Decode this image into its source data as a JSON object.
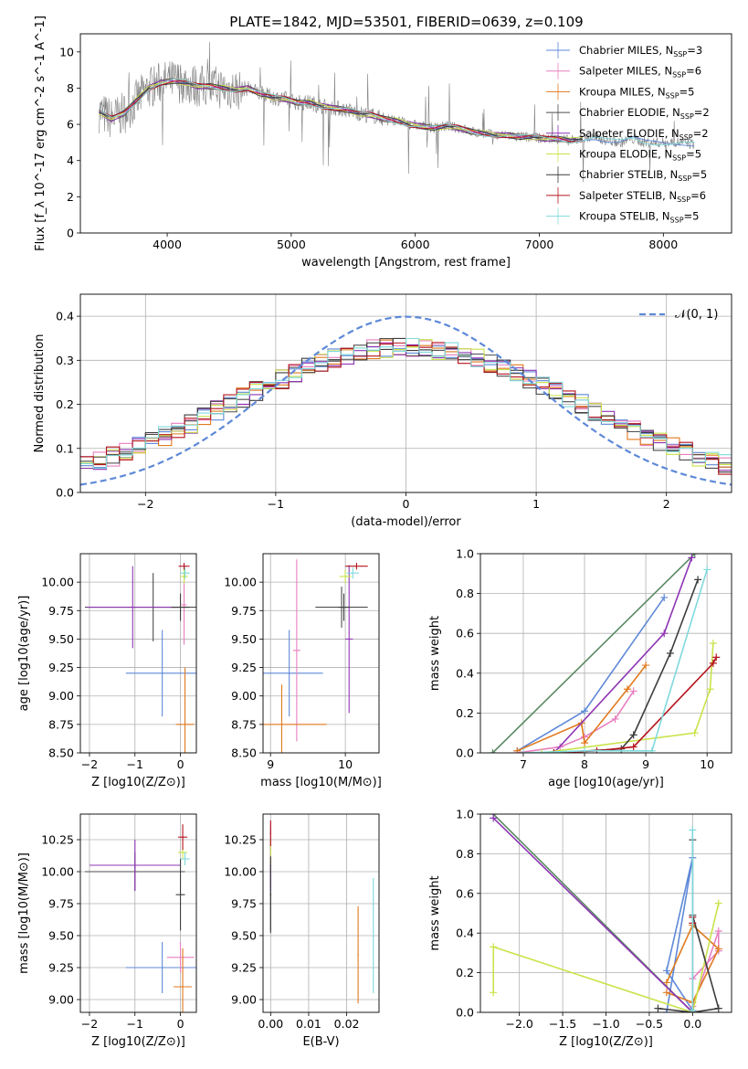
{
  "page_title": "PLATE=1842, MJD=53501, FIBERID=0639, z=0.109",
  "colors": {
    "series": [
      "#5e89d8",
      "#e77fbf",
      "#e07a1f",
      "#4d4d4d",
      "#8e35b3",
      "#c9e34a",
      "#3d3d3d",
      "#b5141c",
      "#7fd9dc"
    ],
    "spectrum": "#808080",
    "normal": "#5e89d8",
    "green": "#5b8a64"
  },
  "legend": [
    {
      "name": "Chabrier MILES",
      "n": "3"
    },
    {
      "name": "Salpeter MILES",
      "n": "6"
    },
    {
      "name": "Kroupa MILES",
      "n": "5"
    },
    {
      "name": "Chabrier ELODIE",
      "n": "2"
    },
    {
      "name": "Salpeter ELODIE",
      "n": "2"
    },
    {
      "name": "Kroupa ELODIE",
      "n": "5"
    },
    {
      "name": "Chabrier STELIB",
      "n": "5"
    },
    {
      "name": "Salpeter STELIB",
      "n": "6"
    },
    {
      "name": "Kroupa STELIB",
      "n": "5"
    }
  ],
  "chart_data": [
    {
      "id": "spectrum",
      "type": "line",
      "xlabel": "wavelength [Angstrom, rest frame]",
      "ylabel": "Flux [f_λ 10^-17 erg cm^-2 s^-1 A^-1]",
      "xlim": [
        3300,
        8550
      ],
      "ylim": [
        0,
        11
      ],
      "xticks": [
        "4000",
        "5000",
        "6000",
        "7000",
        "8000"
      ],
      "yticks": [
        "0",
        "2",
        "4",
        "6",
        "8",
        "10"
      ],
      "x": [
        3450,
        3550,
        3650,
        3750,
        3850,
        3950,
        4050,
        4150,
        4250,
        4350,
        4450,
        4550,
        4650,
        4750,
        4850,
        4950,
        5050,
        5150,
        5250,
        5350,
        5450,
        5550,
        5650,
        5750,
        5850,
        5950,
        6050,
        6150,
        6250,
        6350,
        6450,
        6550,
        6650,
        6750,
        6850,
        6950,
        7050,
        7150,
        7250,
        7350,
        7450,
        7550,
        7650,
        7750,
        7850,
        7950,
        8050,
        8150,
        8250
      ],
      "y": [
        6.7,
        6.3,
        6.6,
        7.3,
        8.0,
        8.3,
        8.4,
        8.3,
        8.1,
        8.1,
        8.0,
        7.9,
        8.0,
        7.7,
        7.5,
        7.4,
        7.2,
        7.2,
        7.0,
        6.9,
        6.8,
        6.6,
        6.5,
        6.3,
        6.2,
        6.0,
        5.9,
        5.8,
        5.9,
        5.8,
        5.6,
        5.5,
        5.4,
        5.4,
        5.3,
        5.3,
        5.2,
        5.2,
        5.1,
        5.2,
        5.3,
        5.1,
        5.0,
        5.2,
        5.0,
        5.0,
        5.0,
        5.0,
        4.9
      ],
      "grid": false
    },
    {
      "id": "residual-hist",
      "type": "bar",
      "xlabel": "(data-model)/error",
      "ylabel": "Normed distribution",
      "xlim": [
        -2.5,
        2.5
      ],
      "ylim": [
        0,
        0.45
      ],
      "xticks": [
        "−2",
        "−1",
        "0",
        "1",
        "2"
      ],
      "yticks": [
        "0.0",
        "0.1",
        "0.2",
        "0.3",
        "0.4"
      ],
      "legend_label": "𝒩(0, 1)",
      "legend_position": "top-right",
      "grid": true
    },
    {
      "id": "age-z",
      "type": "scatter",
      "xlabel": "Z [log10(Z/Z⊙)]",
      "ylabel": "age  [log10(age/yr)]",
      "xlim": [
        -2.2,
        0.35
      ],
      "ylim": [
        8.5,
        10.25
      ],
      "xticks": [
        "−2",
        "−1",
        "0"
      ],
      "yticks": [
        "8.50",
        "8.75",
        "9.00",
        "9.25",
        "9.50",
        "9.75",
        "10.00"
      ],
      "points": [
        {
          "x": -0.4,
          "y": 9.2,
          "xe": 0.8,
          "ye": 0.38,
          "c": 0
        },
        {
          "x": 0.08,
          "y": 9.8,
          "xe": 0.06,
          "ye": 0.35,
          "c": 1
        },
        {
          "x": 0.1,
          "y": 8.75,
          "xe": 0.2,
          "ye": 0.5,
          "c": 2
        },
        {
          "x": -0.6,
          "y": 9.78,
          "xe": 1.5,
          "ye": 0.3,
          "c": 3
        },
        {
          "x": -1.05,
          "y": 9.78,
          "xe": 1.0,
          "ye": 0.36,
          "c": 4
        },
        {
          "x": 0.08,
          "y": 10.05,
          "xe": 0.08,
          "ye": 0.06,
          "c": 5
        },
        {
          "x": 0.0,
          "y": 9.78,
          "xe": 0.2,
          "ye": 0.12,
          "c": 6
        },
        {
          "x": 0.08,
          "y": 10.14,
          "xe": 0.12,
          "ye": 0.03,
          "c": 7
        },
        {
          "x": 0.1,
          "y": 10.08,
          "xe": 0.1,
          "ye": 0.05,
          "c": 8
        }
      ],
      "grid": true
    },
    {
      "id": "age-mass",
      "type": "scatter",
      "xlabel": "mass [log10(M/M⊙)]",
      "ylabel": "",
      "xlim": [
        8.9,
        10.45
      ],
      "ylim": [
        8.5,
        10.25
      ],
      "xticks": [
        "9",
        "10"
      ],
      "yticks": [
        "8.50",
        "8.75",
        "9.00",
        "9.25",
        "9.50",
        "9.75",
        "10.00"
      ],
      "points": [
        {
          "x": 9.25,
          "y": 9.2,
          "xe": 0.45,
          "ye": 0.38,
          "c": 0
        },
        {
          "x": 9.35,
          "y": 9.4,
          "xe": 0.05,
          "ye": 0.8,
          "c": 1
        },
        {
          "x": 9.15,
          "y": 8.75,
          "xe": 0.6,
          "ye": 0.35,
          "c": 2
        },
        {
          "x": 9.95,
          "y": 9.78,
          "xe": 0.35,
          "ye": 0.18,
          "c": 3
        },
        {
          "x": 10.05,
          "y": 9.5,
          "xe": 0.05,
          "ye": 0.65,
          "c": 4
        },
        {
          "x": 10.0,
          "y": 10.05,
          "xe": 0.08,
          "ye": 0.06,
          "c": 5
        },
        {
          "x": 9.98,
          "y": 9.78,
          "xe": 0.08,
          "ye": 0.12,
          "c": 6
        },
        {
          "x": 10.15,
          "y": 10.14,
          "xe": 0.15,
          "ye": 0.03,
          "c": 7
        },
        {
          "x": 10.1,
          "y": 10.08,
          "xe": 0.08,
          "ye": 0.05,
          "c": 8
        }
      ],
      "grid": true
    },
    {
      "id": "mw-age",
      "type": "line",
      "xlabel": "age  [log10(age/yr)]",
      "ylabel": "mass weight",
      "xlim": [
        6.3,
        10.4
      ],
      "ylim": [
        0,
        1
      ],
      "xticks": [
        "7",
        "8",
        "9",
        "10"
      ],
      "yticks": [
        "0.0",
        "0.2",
        "0.4",
        "0.6",
        "0.8",
        "1.0"
      ],
      "series": [
        {
          "c": 0,
          "x": [
            6.9,
            8.0,
            9.3
          ],
          "y": [
            0.01,
            0.21,
            0.78
          ]
        },
        {
          "c": 1,
          "x": [
            6.9,
            7.6,
            8.0,
            8.5,
            8.8
          ],
          "y": [
            0.0,
            0.03,
            0.08,
            0.17,
            0.31
          ]
        },
        {
          "c": 2,
          "x": [
            6.9,
            7.95,
            8.0,
            8.7,
            9.0
          ],
          "y": [
            0.01,
            0.15,
            0.05,
            0.32,
            0.44
          ]
        },
        {
          "c": 3,
          "x": [
            6.5,
            9.8
          ],
          "y": [
            0.0,
            1.0
          ]
        },
        {
          "c": 4,
          "x": [
            7.5,
            9.3,
            9.75
          ],
          "y": [
            0.0,
            0.6,
            0.98
          ]
        },
        {
          "c": 5,
          "x": [
            7.3,
            9.8,
            10.05,
            10.1
          ],
          "y": [
            0.0,
            0.1,
            0.32,
            0.55
          ]
        },
        {
          "c": 6,
          "x": [
            7.5,
            8.6,
            8.8,
            9.4,
            9.85
          ],
          "y": [
            0.0,
            0.02,
            0.09,
            0.5,
            0.87
          ]
        },
        {
          "c": 7,
          "x": [
            7.5,
            8.2,
            8.8,
            10.1,
            10.15
          ],
          "y": [
            0.0,
            0.01,
            0.03,
            0.45,
            0.48
          ]
        },
        {
          "c": 8,
          "x": [
            7.0,
            8.0,
            9.1,
            10.0
          ],
          "y": [
            0.0,
            0.01,
            0.01,
            0.92
          ]
        }
      ],
      "grid": true
    },
    {
      "id": "mass-z",
      "type": "scatter",
      "xlabel": "Z [log10(Z/Z⊙)]",
      "ylabel": "mass [log10(M/M⊙)]",
      "xlim": [
        -2.2,
        0.35
      ],
      "ylim": [
        8.9,
        10.45
      ],
      "xticks": [
        "−2",
        "−1",
        "0"
      ],
      "yticks": [
        "9.00",
        "9.25",
        "9.50",
        "9.75",
        "10.00",
        "10.25"
      ],
      "points": [
        {
          "x": -0.4,
          "y": 9.25,
          "xe": 0.8,
          "ye": 0.2,
          "c": 0
        },
        {
          "x": 0.0,
          "y": 9.33,
          "xe": 0.3,
          "ye": 0.12,
          "c": 1
        },
        {
          "x": 0.05,
          "y": 9.1,
          "xe": 0.2,
          "ye": 0.3,
          "c": 2
        },
        {
          "x": -1.0,
          "y": 10.0,
          "xe": 1.1,
          "ye": 0.15,
          "c": 3
        },
        {
          "x": -1.0,
          "y": 10.05,
          "xe": 1.0,
          "ye": 0.2,
          "c": 4
        },
        {
          "x": 0.05,
          "y": 10.15,
          "xe": 0.1,
          "ye": 0.05,
          "c": 5
        },
        {
          "x": 0.0,
          "y": 9.82,
          "xe": 0.1,
          "ye": 0.28,
          "c": 6
        },
        {
          "x": 0.05,
          "y": 10.27,
          "xe": 0.1,
          "ye": 0.1,
          "c": 7
        },
        {
          "x": 0.1,
          "y": 10.1,
          "xe": 0.1,
          "ye": 0.05,
          "c": 8
        }
      ],
      "grid": true
    },
    {
      "id": "mass-ebv",
      "type": "scatter",
      "xlabel": "E(B-V)",
      "ylabel": "",
      "xlim": [
        -0.002,
        0.0285
      ],
      "ylim": [
        8.9,
        10.45
      ],
      "xticks": [
        "0.00",
        "0.01",
        "0.02"
      ],
      "yticks": [
        "9.00",
        "9.25",
        "9.50",
        "9.75",
        "10.00",
        "10.25"
      ],
      "points": [
        {
          "x": 0.0,
          "y": 10.1,
          "xe": 0,
          "ye": 0.25,
          "c": 0
        },
        {
          "x": 0.0,
          "y": 10.2,
          "xe": 0,
          "ye": 0.2,
          "c": 1
        },
        {
          "x": 0.023,
          "y": 9.35,
          "xe": 0,
          "ye": 0.38,
          "c": 2
        },
        {
          "x": 0.0,
          "y": 9.82,
          "xe": 0,
          "ye": 0.28,
          "c": 3
        },
        {
          "x": 0.0,
          "y": 10.05,
          "xe": 0,
          "ye": 0.2,
          "c": 4
        },
        {
          "x": 0.0,
          "y": 10.15,
          "xe": 0,
          "ye": 0.1,
          "c": 5
        },
        {
          "x": 0.0,
          "y": 9.82,
          "xe": 0,
          "ye": 0.3,
          "c": 6
        },
        {
          "x": 0.0,
          "y": 10.3,
          "xe": 0,
          "ye": 0.1,
          "c": 7
        },
        {
          "x": 0.027,
          "y": 9.5,
          "xe": 0,
          "ye": 0.45,
          "c": 8
        }
      ],
      "grid": true
    },
    {
      "id": "mw-z",
      "type": "line",
      "xlabel": "Z [log10(Z/Z⊙)]",
      "ylabel": "mass weight",
      "xlim": [
        -2.45,
        0.45
      ],
      "ylim": [
        0,
        1
      ],
      "xticks": [
        "−2.0",
        "−1.5",
        "−1.0",
        "−0.5",
        "0.0",
        "0.5"
      ],
      "yticks": [
        "0.0",
        "0.2",
        "0.4",
        "0.6",
        "0.8",
        "1.0"
      ],
      "series": [
        {
          "c": 0,
          "x": [
            -0.3,
            0.0,
            -0.3,
            0.0
          ],
          "y": [
            0.0,
            0.78,
            0.21,
            0.01
          ]
        },
        {
          "c": 1,
          "x": [
            0.0,
            0.3,
            0.3,
            0.0
          ],
          "y": [
            0.17,
            0.31,
            0.41,
            0.03
          ]
        },
        {
          "c": 2,
          "x": [
            -0.3,
            0.0,
            0.3,
            0.0,
            -0.3
          ],
          "y": [
            0.15,
            0.44,
            0.32,
            0.05,
            0.1
          ]
        },
        {
          "c": 3,
          "x": [
            -2.3,
            0.0
          ],
          "y": [
            1.0,
            0.0
          ]
        },
        {
          "c": 4,
          "x": [
            -2.3,
            0.0
          ],
          "y": [
            0.98,
            0.0
          ]
        },
        {
          "c": 5,
          "x": [
            -2.3,
            -2.3,
            0.0,
            0.3
          ],
          "y": [
            0.1,
            0.33,
            0.0,
            0.55
          ]
        },
        {
          "c": 6,
          "x": [
            -0.4,
            0.0,
            0.3,
            0.0,
            0.0
          ],
          "y": [
            0.02,
            0.0,
            0.02,
            0.49,
            0.87
          ]
        },
        {
          "c": 7,
          "x": [
            0.0,
            0.0,
            0.0
          ],
          "y": [
            0.0,
            0.45,
            0.48
          ]
        },
        {
          "c": 8,
          "x": [
            0.0,
            0.0,
            0.0
          ],
          "y": [
            0.0,
            0.92,
            0.01
          ]
        }
      ],
      "grid": true
    }
  ]
}
